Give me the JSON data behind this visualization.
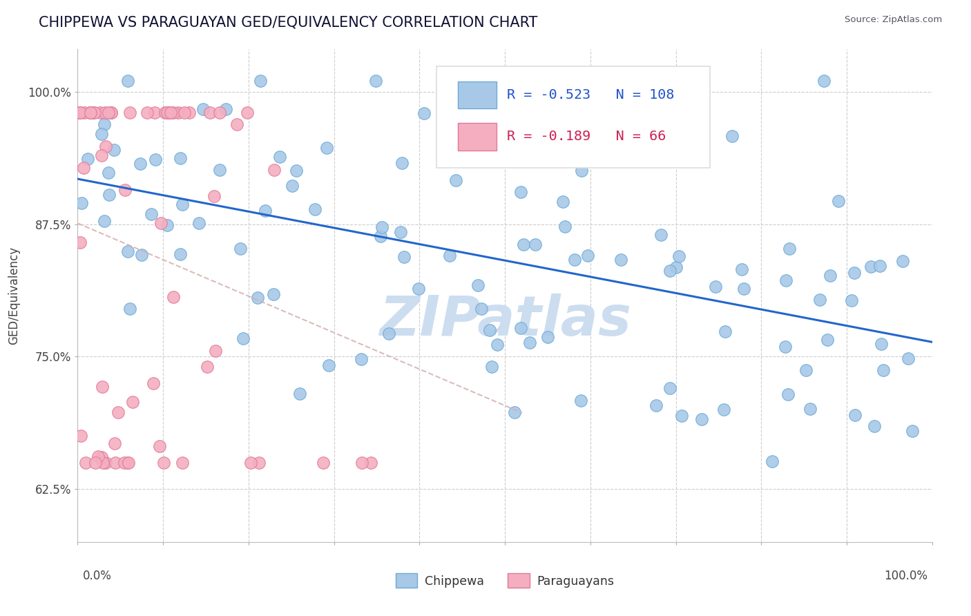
{
  "title": "CHIPPEWA VS PARAGUAYAN GED/EQUIVALENCY CORRELATION CHART",
  "source": "Source: ZipAtlas.com",
  "ylabel": "GED/Equivalency",
  "ytick_labels": [
    "62.5%",
    "75.0%",
    "87.5%",
    "100.0%"
  ],
  "ytick_values": [
    0.625,
    0.75,
    0.875,
    1.0
  ],
  "xlim": [
    0.0,
    1.0
  ],
  "ylim": [
    0.575,
    1.04
  ],
  "legend_chippewa_R": "-0.523",
  "legend_chippewa_N": "108",
  "legend_paraguayan_R": "-0.189",
  "legend_paraguayan_N": "66",
  "chippewa_color": "#a8c8e8",
  "chippewa_edge_color": "#6aaad4",
  "paraguayan_color": "#f4aec0",
  "paraguayan_edge_color": "#e07898",
  "chippewa_line_color": "#2266cc",
  "paraguayan_line_color": "#cc3355",
  "paraguayan_dash_color": "#d4b0b0",
  "watermark_color": "#ccddf0",
  "legend_text_blue": "#2255cc",
  "legend_text_pink": "#cc2255",
  "background_color": "#ffffff",
  "grid_color": "#cccccc",
  "title_color": "#111133",
  "source_color": "#555566",
  "axis_color": "#999999"
}
